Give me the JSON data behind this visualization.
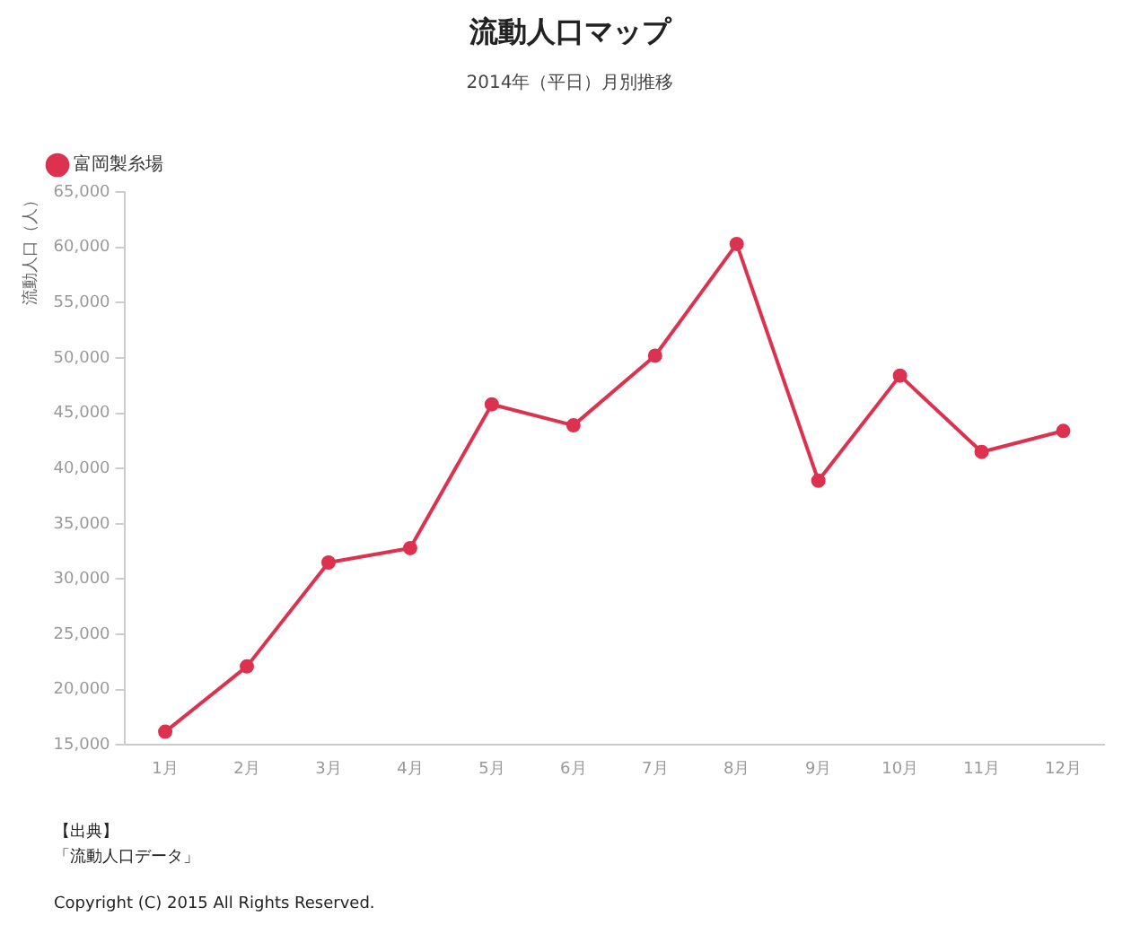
{
  "chart_data": {
    "type": "line",
    "title": "流動人口マップ",
    "subtitle": "2014年（平日）月別推移",
    "ylabel": "流動人口（人）",
    "categories": [
      "1月",
      "2月",
      "3月",
      "4月",
      "5月",
      "6月",
      "7月",
      "8月",
      "9月",
      "10月",
      "11月",
      "12月"
    ],
    "series": [
      {
        "name": "富岡製糸場",
        "color": "#dc3250",
        "values": [
          16200,
          22100,
          31500,
          32800,
          45800,
          43900,
          50200,
          60300,
          38900,
          48400,
          41500,
          43400
        ]
      }
    ],
    "ylim": [
      15000,
      65000
    ],
    "yticks": [
      {
        "value": 15000,
        "label": "15,000"
      },
      {
        "value": 20000,
        "label": "20,000"
      },
      {
        "value": 25000,
        "label": "25,000"
      },
      {
        "value": 30000,
        "label": "30,000"
      },
      {
        "value": 35000,
        "label": "35,000"
      },
      {
        "value": 40000,
        "label": "40,000"
      },
      {
        "value": 45000,
        "label": "45,000"
      },
      {
        "value": 50000,
        "label": "50,000"
      },
      {
        "value": 55000,
        "label": "55,000"
      },
      {
        "value": 60000,
        "label": "60,000"
      },
      {
        "value": 65000,
        "label": "65,000"
      }
    ],
    "grid": false,
    "legend": "top left",
    "marker": "circle",
    "line_style": "solid",
    "annotations": [
      "【出典】",
      "「流動人口データ」",
      "Copyright (C) 2015 All Rights Reserved."
    ]
  }
}
